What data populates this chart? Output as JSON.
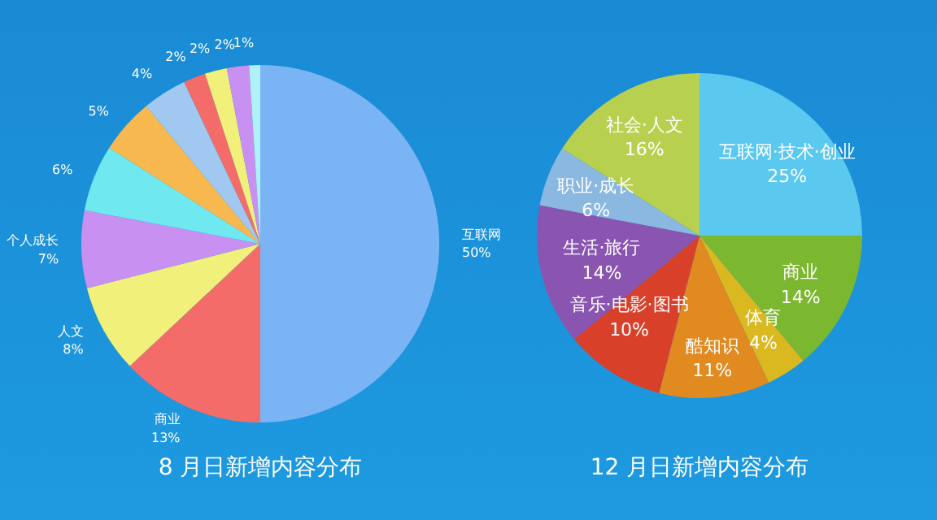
{
  "chart_data": [
    {
      "type": "pie",
      "title": "8 月日新增内容分布",
      "categories": [
        "互联网",
        "商业",
        "人文",
        "个人成长",
        null,
        null,
        null,
        null,
        null,
        null,
        null
      ],
      "values": [
        50,
        13,
        8,
        7,
        6,
        5,
        4,
        2,
        2,
        2,
        1
      ],
      "value_labels": [
        "50%",
        "13%",
        "8%",
        "7%",
        "6%",
        "5%",
        "4%",
        "2%",
        "2%",
        "2%",
        "1%"
      ],
      "colors": [
        "#7ab4f5",
        "#f46c6a",
        "#f0f07a",
        "#c890f0",
        "#70e8f0",
        "#f8b850",
        "#a0c8f0",
        "#f46c6a",
        "#f0f07a",
        "#c890f0",
        "#b0f0f8"
      ]
    },
    {
      "type": "pie",
      "title": "12 月日新增内容分布",
      "categories": [
        "互联网·技术·创业",
        "商业",
        "体育",
        "酷知识",
        "音乐·电影·图书",
        "生活·旅行",
        "职业·成长",
        "社会·人文"
      ],
      "values": [
        25,
        14,
        4,
        11,
        10,
        14,
        6,
        16
      ],
      "value_labels": [
        "25%",
        "14%",
        "4%",
        "11%",
        "10%",
        "14%",
        "6%",
        "16%"
      ],
      "colors": [
        "#5bc8f0",
        "#7cb82f",
        "#d9b820",
        "#e08a20",
        "#d8402a",
        "#8a55b0",
        "#8ab8e0",
        "#b8d050"
      ]
    }
  ]
}
